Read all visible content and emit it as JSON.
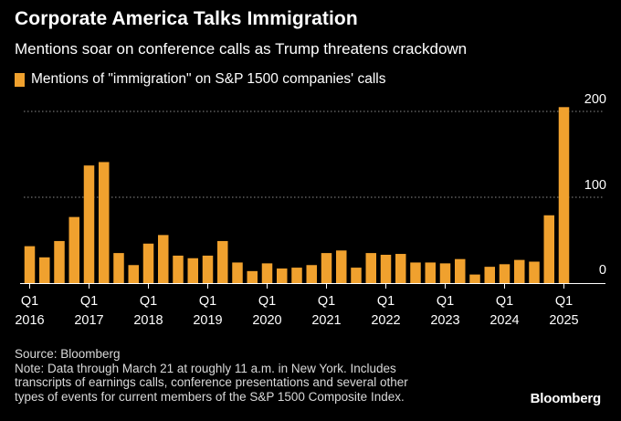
{
  "header": {
    "title": "Corporate America Talks Immigration",
    "subtitle": "Mentions soar on conference calls as Trump threatens crackdown"
  },
  "legend": {
    "label": "Mentions of \"immigration\" on S&P 1500 companies' calls",
    "color": "#f0a12e"
  },
  "footer": {
    "source": "Source: Bloomberg",
    "note_lines": [
      "Note: Data through March 21 at roughly 11 a.m. in New York. Includes",
      "transcripts of earnings calls, conference presentations and several other",
      "types of events for current members of the S&P 1500 Composite Index."
    ],
    "brand": "Bloomberg"
  },
  "colors": {
    "background": "#000000",
    "bar": "#f0a12e",
    "text": "#ffffff",
    "grid": "#8c8c8c",
    "axis": "#ffffff"
  },
  "chart_data": {
    "type": "bar",
    "title": "Corporate America Talks Immigration",
    "subtitle": "Mentions soar on conference calls as Trump threatens crackdown",
    "xlabel": "",
    "ylabel": "",
    "ylim": [
      0,
      200
    ],
    "yticks": [
      0,
      100,
      200
    ],
    "grid": true,
    "legend_position": "top-left",
    "x_tick_labels": [
      {
        "index": 0,
        "quarter": "Q1",
        "year": "2016"
      },
      {
        "index": 4,
        "quarter": "Q1",
        "year": "2017"
      },
      {
        "index": 8,
        "quarter": "Q1",
        "year": "2018"
      },
      {
        "index": 12,
        "quarter": "Q1",
        "year": "2019"
      },
      {
        "index": 16,
        "quarter": "Q1",
        "year": "2020"
      },
      {
        "index": 20,
        "quarter": "Q1",
        "year": "2021"
      },
      {
        "index": 24,
        "quarter": "Q1",
        "year": "2022"
      },
      {
        "index": 28,
        "quarter": "Q1",
        "year": "2023"
      },
      {
        "index": 32,
        "quarter": "Q1",
        "year": "2024"
      },
      {
        "index": 36,
        "quarter": "Q1",
        "year": "2025"
      }
    ],
    "series": [
      {
        "name": "Mentions of \"immigration\" on S&P 1500 companies' calls",
        "values": [
          43,
          30,
          49,
          77,
          137,
          141,
          35,
          21,
          46,
          56,
          32,
          29,
          32,
          49,
          24,
          14,
          23,
          17,
          18,
          21,
          35,
          38,
          18,
          35,
          33,
          34,
          24,
          24,
          23,
          28,
          10,
          19,
          22,
          27,
          25,
          79,
          205
        ]
      }
    ]
  }
}
